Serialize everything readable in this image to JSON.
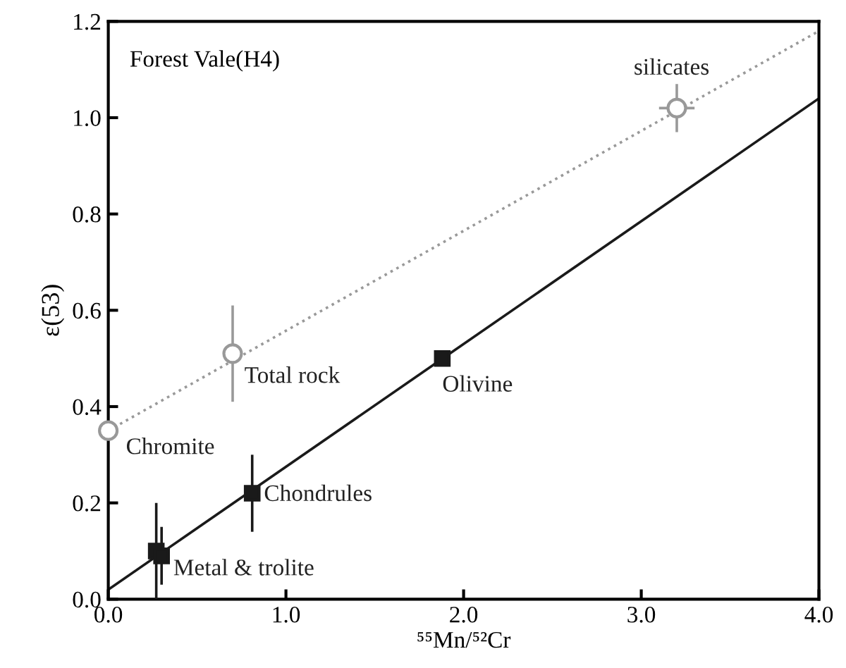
{
  "chart_data": {
    "type": "scatter",
    "xlabel": "⁵⁵Mn/⁵²Cr",
    "ylabel": "ε(53)",
    "annotations": [
      "Forest Vale(H4)"
    ],
    "xlim": [
      0,
      4.0
    ],
    "ylim": [
      0,
      1.2
    ],
    "xticks": [
      {
        "value": 0,
        "label": "0.0"
      },
      {
        "value": 1,
        "label": "1.0"
      },
      {
        "value": 2,
        "label": "2.0"
      },
      {
        "value": 3,
        "label": "3.0"
      },
      {
        "value": 4,
        "label": "4.0"
      }
    ],
    "yticks": [
      {
        "value": 0,
        "label": "0.0"
      },
      0.2,
      0.4,
      0.6,
      0.8,
      {
        "value": 1,
        "label": "1.0"
      },
      1.2
    ],
    "grid": false,
    "legend": false,
    "series": [
      {
        "type": "line",
        "color": "#999999",
        "line_style": "dotted",
        "marker": "none",
        "x": [
          0,
          4.0
        ],
        "values": [
          0.35,
          1.18
        ]
      },
      {
        "type": "line",
        "color": "#1a1a1a",
        "line_style": "solid",
        "marker": "none",
        "x": [
          0,
          4.0
        ],
        "values": [
          0.02,
          1.04
        ]
      },
      {
        "name": "Chromite",
        "color": "#999999",
        "marker": "circle",
        "x": [
          0
        ],
        "values": [
          0.35
        ]
      },
      {
        "name": "Total rock",
        "color": "#999999",
        "marker": "circle",
        "x": [
          0.7
        ],
        "values": [
          0.51
        ],
        "errors": [
          0.1
        ]
      },
      {
        "name": "silicates",
        "color": "#999999",
        "marker": "circle",
        "x": [
          3.2
        ],
        "values": [
          1.02
        ],
        "errors": [
          0.05
        ],
        "xerrors": [
          0.1
        ]
      },
      {
        "name": "Chondrules",
        "color": "#1a1a1a",
        "marker": "square",
        "x": [
          0.81
        ],
        "values": [
          0.22
        ],
        "errors": [
          0.08
        ]
      },
      {
        "name": "Metal & trolite",
        "color": "#1a1a1a",
        "marker": "square",
        "x": [
          0.27,
          0.3
        ],
        "values": [
          0.1,
          0.09
        ],
        "errors": [
          0.1,
          0.06
        ]
      },
      {
        "name": "Olivine",
        "color": "#1a1a1a",
        "marker": "square",
        "x": [
          1.88
        ],
        "values": [
          0.5
        ]
      }
    ]
  }
}
